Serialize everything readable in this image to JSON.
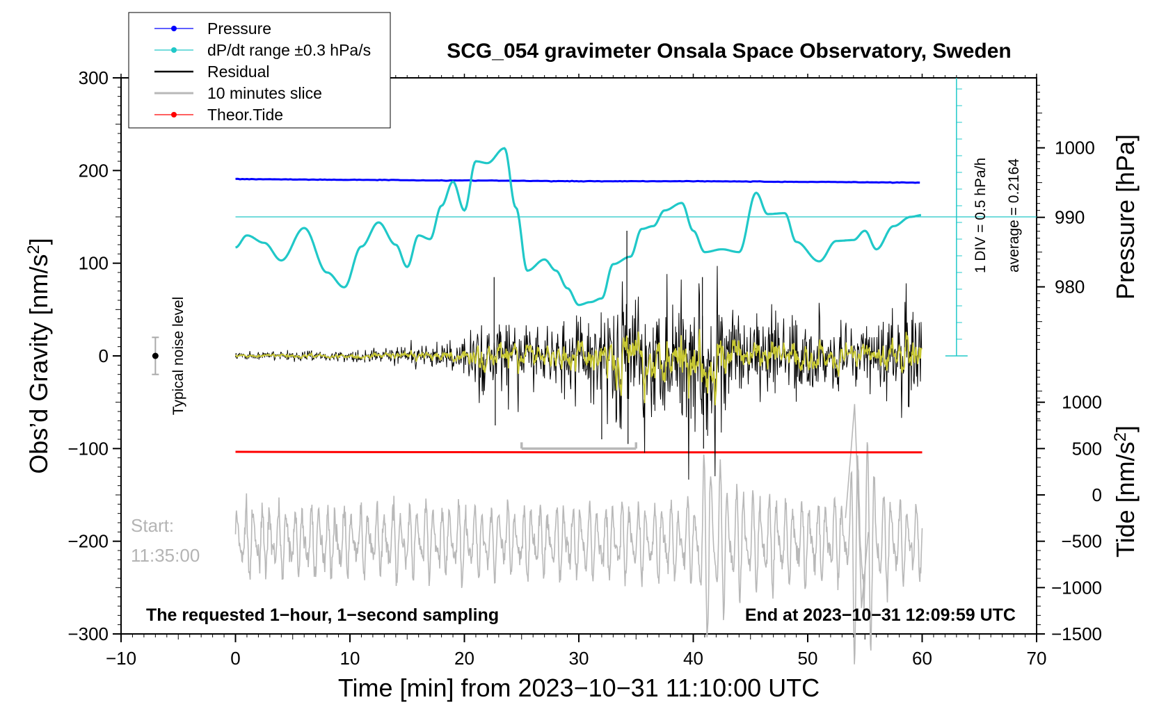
{
  "colors": {
    "pressure": "#0000ff",
    "dpdt": "#20c8c8",
    "residual": "#000000",
    "slice": "#b8b8b8",
    "tide": "#ff0000",
    "filtered": "#c8c832",
    "noise_bar": "#aaaaaa"
  },
  "chart_data": {
    "type": "line",
    "title": "SCG_054 gravimeter Onsala Space Observatory, Sweden",
    "xlabel": "Time [min] from 2023−10−31 11:10:00 UTC",
    "ylabel_left": "Obs’d Gravity [nm/s",
    "ylabel_left_sup": "2",
    "ylabel_left_close": "]",
    "ylabel_right_pressure": "Pressure [hPa]",
    "ylabel_right_tide": "Tide [nm/s",
    "ylabel_right_tide_sup": "2",
    "ylabel_right_tide_close": "]",
    "xlim": [
      -10,
      70
    ],
    "ylim": [
      -300,
      300
    ],
    "x_ticks": [
      -10,
      0,
      10,
      20,
      30,
      40,
      50,
      60,
      70
    ],
    "x_tick_labels": [
      "−10",
      "0",
      "10",
      "20",
      "30",
      "40",
      "50",
      "60",
      "70"
    ],
    "y_ticks": [
      300,
      200,
      100,
      0,
      -100,
      -200,
      -300
    ],
    "y_tick_labels": [
      "300",
      "200",
      "100",
      "0",
      "−100",
      "−200",
      "−300"
    ],
    "pressure_axis": {
      "ticks": [
        1000,
        990,
        980
      ],
      "tick_labels": [
        "1000",
        "990",
        "980"
      ],
      "ref_1000_gravity": 224.5,
      "gravity_per_hpa": 7.5
    },
    "tide_axis": {
      "ticks": [
        1000,
        500,
        0,
        -500,
        -1000,
        -1500
      ],
      "tick_labels": [
        "1000",
        "500",
        "0",
        "−500",
        "−1000",
        "−1500"
      ],
      "gravity_at_zero": -150,
      "gravity_per_unit": 0.1
    },
    "legend": [
      {
        "label": "Pressure",
        "series": "pressure",
        "marker": true
      },
      {
        "label": "dP/dt range ±0.3 hPa/s",
        "series": "dpdt",
        "marker": true
      },
      {
        "label": "Residual",
        "series": "residual",
        "marker": false
      },
      {
        "label": "10 minutes slice",
        "series": "slice",
        "marker": false
      },
      {
        "label": "Theor.Tide",
        "series": "tide",
        "marker": true
      }
    ],
    "series": [
      {
        "name": "Pressure",
        "unit": "hPa",
        "x": [
          0,
          10,
          20,
          30,
          40,
          50,
          60
        ],
        "values": [
          995.5,
          995.4,
          995.3,
          995.2,
          995.2,
          995.1,
          995.0
        ]
      },
      {
        "name": "dP/dt",
        "unit": "gravity axis",
        "x": [
          0,
          1,
          2.5,
          4,
          6,
          8,
          9.5,
          11,
          12.5,
          14,
          15,
          16,
          17,
          18,
          19,
          20,
          21,
          22,
          23.5,
          24.5,
          25.5,
          27,
          28,
          29,
          30,
          31,
          32,
          33,
          34.5,
          35.5,
          36.5,
          37.5,
          39,
          40,
          41,
          42.5,
          44,
          45.5,
          46.5,
          48,
          49,
          51,
          52.5,
          54,
          55,
          56,
          57.5,
          59,
          60
        ],
        "values": [
          117,
          130,
          122,
          103,
          138,
          90,
          74,
          118,
          144,
          120,
          96,
          130,
          126,
          162,
          188,
          157,
          210,
          208,
          224,
          160,
          92,
          104,
          92,
          73,
          55,
          58,
          62,
          99,
          107,
          137,
          140,
          157,
          165,
          135,
          112,
          115,
          112,
          176,
          153,
          154,
          123,
          102,
          124,
          125,
          135,
          115,
          140,
          150,
          152
        ]
      },
      {
        "name": "Residual",
        "x": [
          0,
          10,
          19,
          22.5,
          27,
          30,
          32,
          34.2,
          35,
          37,
          40.8,
          45,
          50,
          55,
          58.8,
          60
        ],
        "amplitude_envelope": [
          5,
          7,
          18,
          45,
          38,
          45,
          65,
          95,
          70,
          60,
          85,
          45,
          48,
          42,
          58,
          45
        ]
      },
      {
        "name": "10 minutes slice",
        "x_start": 25,
        "x_end": 35,
        "y": -100
      },
      {
        "name": "Theor.Tide",
        "unit": "nm/s2 (tide axis)",
        "x": [
          0,
          10,
          20,
          30,
          40,
          50,
          60
        ],
        "values": [
          465,
          462,
          461,
          460,
          460,
          460,
          460
        ]
      }
    ],
    "typical_noise": {
      "x": -7,
      "y": 0,
      "plus_minus": 20,
      "label": "Typical noise level"
    },
    "scale_annotation": {
      "line1": "1 DIV = 0.5 hPa/h",
      "line2": "average = 0.2164",
      "zero_line_gravity": 150
    },
    "start_label": "Start:",
    "start_time": "11:35:00",
    "footer_left": "The requested 1−hour, 1−second sampling",
    "footer_right": "End at 2023−10−31 12:09:59 UTC"
  }
}
